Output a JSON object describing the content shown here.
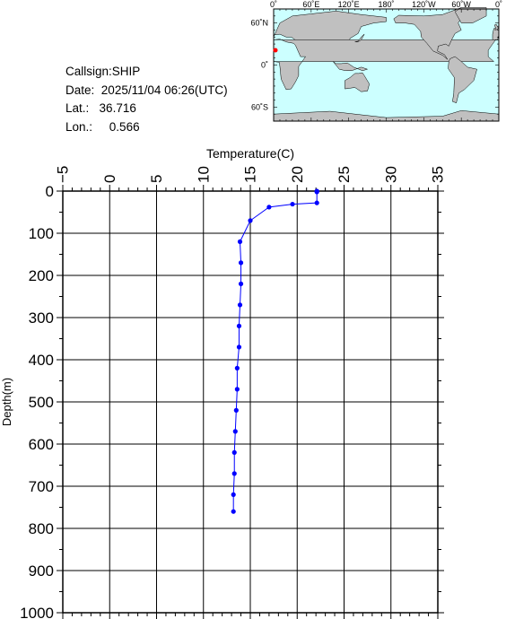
{
  "station": {
    "callsign_label": "Callsign:SHIP",
    "date_label": "Date:",
    "date_value": "2025/11/04 06:26(UTC)",
    "lat_label": "Lat.:",
    "lat_value": "36.716",
    "lon_label": "Lon.:",
    "lon_value": "0.566"
  },
  "map": {
    "top_labels": [
      "0˚",
      "60˚E",
      "120˚E",
      "180˚",
      "120˚W",
      "60˚W",
      "0˚"
    ],
    "left_labels": [
      "60˚N",
      "0˚",
      "60˚S"
    ],
    "ocean_color": "#ccffff",
    "land_color": "#c0c0c0",
    "marker_color": "#ff0000"
  },
  "chart_data": {
    "type": "line",
    "xlabel": "Temperature(C)",
    "ylabel": "Depth(m)",
    "xlim": [
      -5,
      35
    ],
    "ylim": [
      0,
      1000
    ],
    "y_inverted": true,
    "x_axis_position": "top",
    "x_ticks": [
      "-5",
      "0",
      "5",
      "10",
      "15",
      "20",
      "25",
      "30",
      "35"
    ],
    "y_ticks": [
      "0",
      "100",
      "200",
      "300",
      "400",
      "500",
      "600",
      "700",
      "800",
      "900",
      "1000"
    ],
    "grid": true,
    "line_color": "#0000ff",
    "series": [
      {
        "depth": [
          0,
          2,
          28,
          31,
          38,
          70,
          120,
          170,
          220,
          270,
          320,
          370,
          420,
          470,
          520,
          570,
          620,
          670,
          720,
          760
        ],
        "temperature": [
          22.1,
          22.1,
          22.1,
          19.5,
          17.0,
          15.0,
          13.9,
          14.0,
          14.0,
          13.9,
          13.8,
          13.8,
          13.6,
          13.6,
          13.5,
          13.4,
          13.3,
          13.3,
          13.2,
          13.2
        ]
      }
    ]
  }
}
